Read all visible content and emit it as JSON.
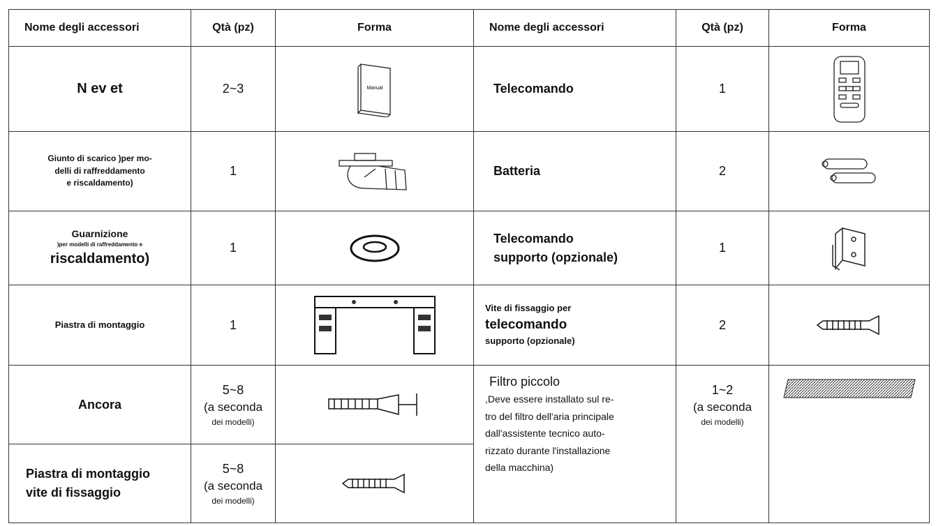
{
  "table": {
    "header": [
      "Nome degli accessori",
      "Qtà (pz)",
      "Forma",
      "Nome degli accessori",
      "Qtà (pz)",
      "Forma"
    ],
    "rows": [
      {
        "left": {
          "name": [
            "N ev   et"
          ],
          "qty": [
            "2~3"
          ],
          "icon_text": "Manual"
        },
        "right": {
          "name": [
            "Telecomando"
          ],
          "qty": [
            "1"
          ]
        }
      },
      {
        "left": {
          "name": [
            "Giunto di scarico )per mo-",
            "delli di raffreddamento",
            "e riscaldamento)"
          ],
          "qty": [
            "1"
          ]
        },
        "right": {
          "name": [
            "Batteria"
          ],
          "qty": [
            "2"
          ]
        }
      },
      {
        "left": {
          "name": [
            "Guarnizione",
            ")per modelli di raffreddamento e",
            "riscaldamento)"
          ],
          "qty": [
            "1"
          ]
        },
        "right": {
          "name": [
            "Telecomando",
            "supporto (opzionale)"
          ],
          "qty": [
            "1"
          ]
        }
      },
      {
        "left": {
          "name": [
            "Piastra di montaggio"
          ],
          "qty": [
            "1"
          ]
        },
        "right": {
          "name": [
            "Vite di fissaggio per",
            "telecomando",
            "supporto (opzionale)"
          ],
          "qty": [
            "2"
          ]
        }
      },
      {
        "left": {
          "name": [
            "Ancora"
          ],
          "qty": [
            "5~8",
            "(a seconda",
            "dei modelli)"
          ]
        },
        "right": {
          "name": [
            "Filtro piccolo",
            ",Deve essere installato sul re-",
            "tro del filtro dell'aria principale",
            "dall'assistente tecnico auto-",
            "rizzato durante l'installazione",
            "della macchina)"
          ],
          "qty": [
            "1~2",
            "(a seconda",
            "dei modelli)"
          ]
        }
      },
      {
        "left": {
          "name": [
            "Piastra di montaggio",
            "vite di fissaggio"
          ],
          "qty": [
            "5~8",
            "(a seconda",
            "dei modelli)"
          ]
        }
      }
    ]
  }
}
